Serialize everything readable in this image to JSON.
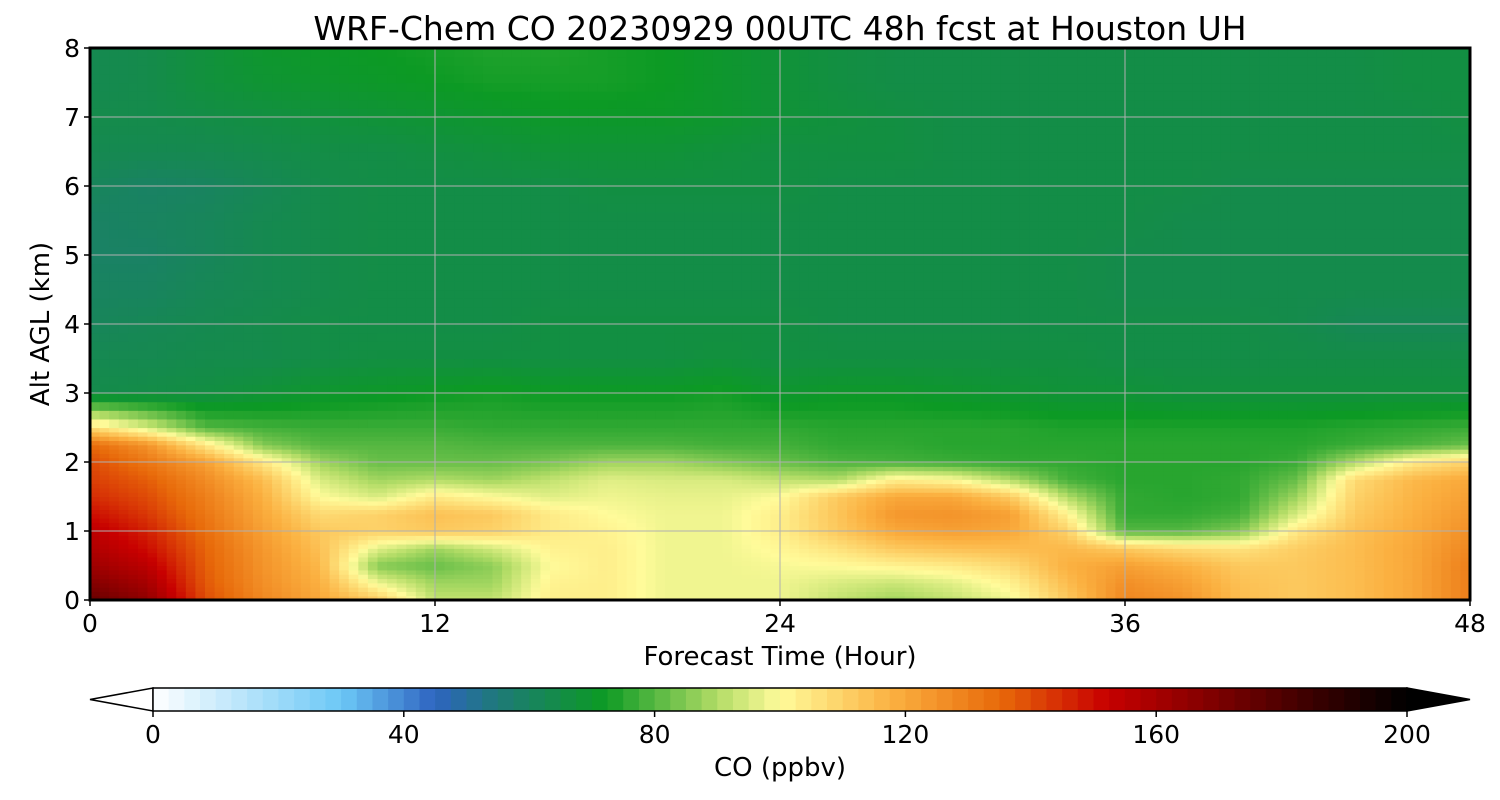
{
  "chart_data": {
    "type": "heatmap",
    "title": "WRF-Chem CO  20230929 00UTC 48h fcst at Houston UH",
    "xlabel": "Forecast Time (Hour)",
    "ylabel": "Alt AGL (km)",
    "xlim": [
      0,
      48
    ],
    "ylim": [
      0,
      8
    ],
    "xticks": [
      0,
      12,
      24,
      36,
      48
    ],
    "yticks": [
      0,
      1,
      2,
      3,
      4,
      5,
      6,
      7,
      8
    ],
    "grid": true,
    "x": [
      0,
      2,
      4,
      6,
      8,
      10,
      12,
      14,
      16,
      18,
      20,
      22,
      24,
      26,
      28,
      30,
      32,
      34,
      36,
      38,
      40,
      42,
      44,
      46,
      48
    ],
    "y": [
      0,
      0.25,
      0.5,
      0.75,
      1,
      1.25,
      1.5,
      1.75,
      2,
      2.25,
      2.5,
      3,
      3.5,
      4,
      4.5,
      5,
      5.5,
      6,
      6.5,
      7,
      7.5,
      8
    ],
    "z": [
      [
        175,
        165,
        140,
        128,
        120,
        112,
        92,
        92,
        103,
        103,
        98,
        98,
        98,
        92,
        88,
        92,
        98,
        112,
        128,
        125,
        115,
        112,
        115,
        120,
        130
      ],
      [
        168,
        160,
        138,
        126,
        118,
        98,
        88,
        88,
        102,
        103,
        98,
        98,
        98,
        95,
        93,
        96,
        102,
        115,
        126,
        122,
        114,
        112,
        115,
        120,
        130
      ],
      [
        162,
        155,
        137,
        125,
        116,
        85,
        82,
        86,
        100,
        103,
        98,
        98,
        99,
        100,
        102,
        104,
        108,
        118,
        122,
        118,
        112,
        112,
        115,
        120,
        130
      ],
      [
        158,
        150,
        136,
        124,
        114,
        96,
        88,
        94,
        102,
        103,
        98,
        98,
        101,
        106,
        112,
        114,
        115,
        116,
        112,
        108,
        106,
        111,
        115,
        120,
        128
      ],
      [
        155,
        147,
        134,
        122,
        112,
        110,
        112,
        110,
        104,
        102,
        98,
        98,
        103,
        112,
        120,
        122,
        120,
        110,
        80,
        80,
        85,
        105,
        114,
        119,
        126
      ],
      [
        150,
        143,
        132,
        120,
        108,
        110,
        114,
        112,
        104,
        100,
        98,
        98,
        103,
        113,
        124,
        125,
        122,
        102,
        76,
        76,
        78,
        95,
        112,
        118,
        124
      ],
      [
        145,
        140,
        130,
        118,
        100,
        95,
        104,
        100,
        96,
        98,
        97,
        97,
        100,
        112,
        120,
        120,
        112,
        90,
        76,
        75,
        76,
        88,
        110,
        117,
        122
      ],
      [
        142,
        137,
        127,
        115,
        95,
        88,
        90,
        88,
        92,
        96,
        95,
        95,
        92,
        90,
        103,
        100,
        90,
        78,
        75,
        75,
        76,
        82,
        108,
        116,
        120
      ],
      [
        140,
        132,
        122,
        105,
        88,
        82,
        82,
        82,
        84,
        88,
        88,
        85,
        82,
        79,
        78,
        77,
        76,
        76,
        75,
        75,
        75,
        77,
        90,
        104,
        110
      ],
      [
        135,
        125,
        105,
        85,
        80,
        80,
        80,
        79,
        79,
        79,
        79,
        78,
        78,
        76,
        76,
        75,
        75,
        75,
        75,
        75,
        75,
        75,
        77,
        79,
        82
      ],
      [
        108,
        95,
        80,
        78,
        77,
        77,
        77,
        76,
        76,
        76,
        76,
        76,
        76,
        75,
        75,
        75,
        75,
        74,
        74,
        74,
        74,
        74,
        75,
        76,
        77
      ],
      [
        64,
        65,
        66,
        68,
        70,
        71,
        72,
        73,
        72,
        72,
        72,
        73,
        70,
        71,
        71,
        70,
        69,
        68,
        68,
        67,
        67,
        67,
        67,
        67,
        67
      ],
      [
        63,
        63,
        64,
        64,
        65,
        66,
        66,
        66,
        66,
        66,
        66,
        67,
        66,
        66,
        66,
        66,
        66,
        66,
        65,
        65,
        65,
        65,
        65,
        65,
        65
      ],
      [
        61,
        62,
        63,
        64,
        65,
        65,
        65,
        65,
        66,
        66,
        66,
        66,
        66,
        65,
        65,
        65,
        65,
        65,
        65,
        65,
        65,
        64,
        62,
        62,
        62
      ],
      [
        60,
        60,
        62,
        63,
        64,
        65,
        65,
        65,
        65,
        65,
        65,
        65,
        65,
        65,
        65,
        65,
        65,
        65,
        64,
        64,
        64,
        64,
        64,
        64,
        64
      ],
      [
        59,
        59,
        61,
        63,
        64,
        65,
        65,
        65,
        65,
        65,
        65,
        65,
        65,
        65,
        65,
        65,
        65,
        65,
        64,
        64,
        64,
        64,
        64,
        64,
        64
      ],
      [
        59,
        60,
        61,
        63,
        64,
        65,
        65,
        65,
        65,
        65,
        65,
        65,
        65,
        65,
        65,
        65,
        65,
        65,
        65,
        64,
        64,
        64,
        64,
        64,
        64
      ],
      [
        61,
        59,
        60,
        62,
        64,
        65,
        65,
        65,
        65,
        66,
        66,
        66,
        66,
        65,
        65,
        65,
        65,
        65,
        65,
        65,
        64,
        64,
        64,
        64,
        64
      ],
      [
        63,
        63,
        63,
        64,
        65,
        65,
        66,
        67,
        68,
        68,
        68,
        67,
        66,
        66,
        66,
        65,
        65,
        65,
        65,
        65,
        65,
        65,
        65,
        65,
        65
      ],
      [
        64,
        64,
        65,
        66,
        67,
        68,
        69,
        70,
        71,
        71,
        71,
        70,
        68,
        67,
        66,
        65,
        65,
        65,
        65,
        65,
        65,
        65,
        65,
        65,
        66
      ],
      [
        63,
        64,
        67,
        69,
        70,
        71,
        72,
        73,
        73,
        73,
        72,
        70,
        68,
        66,
        65,
        65,
        65,
        65,
        65,
        65,
        65,
        65,
        65,
        66,
        66
      ],
      [
        63,
        64,
        67,
        70,
        71,
        72,
        73,
        74,
        74,
        73,
        72,
        70,
        68,
        66,
        65,
        65,
        65,
        65,
        65,
        65,
        65,
        65,
        65,
        66,
        66
      ]
    ],
    "colorbar": {
      "label": "CO  (ppbv)",
      "min": 0,
      "max": 200,
      "ticks": [
        0,
        40,
        80,
        120,
        160,
        200
      ],
      "extend": "both",
      "orientation": "horizontal",
      "placement": "bottom",
      "colors": [
        "#ffffff",
        "#6cc8f6",
        "#2e64c0",
        "#1e7a78",
        "#0c9a24",
        "#b2dc66",
        "#fffb9a",
        "#fbb040",
        "#e86a0a",
        "#c80000",
        "#3a0000",
        "#000000"
      ],
      "color_stops": [
        0,
        30,
        45,
        55,
        72,
        90,
        100,
        118,
        135,
        152,
        185,
        200
      ],
      "under_color": "#ffffff",
      "over_color": "#000000"
    }
  }
}
